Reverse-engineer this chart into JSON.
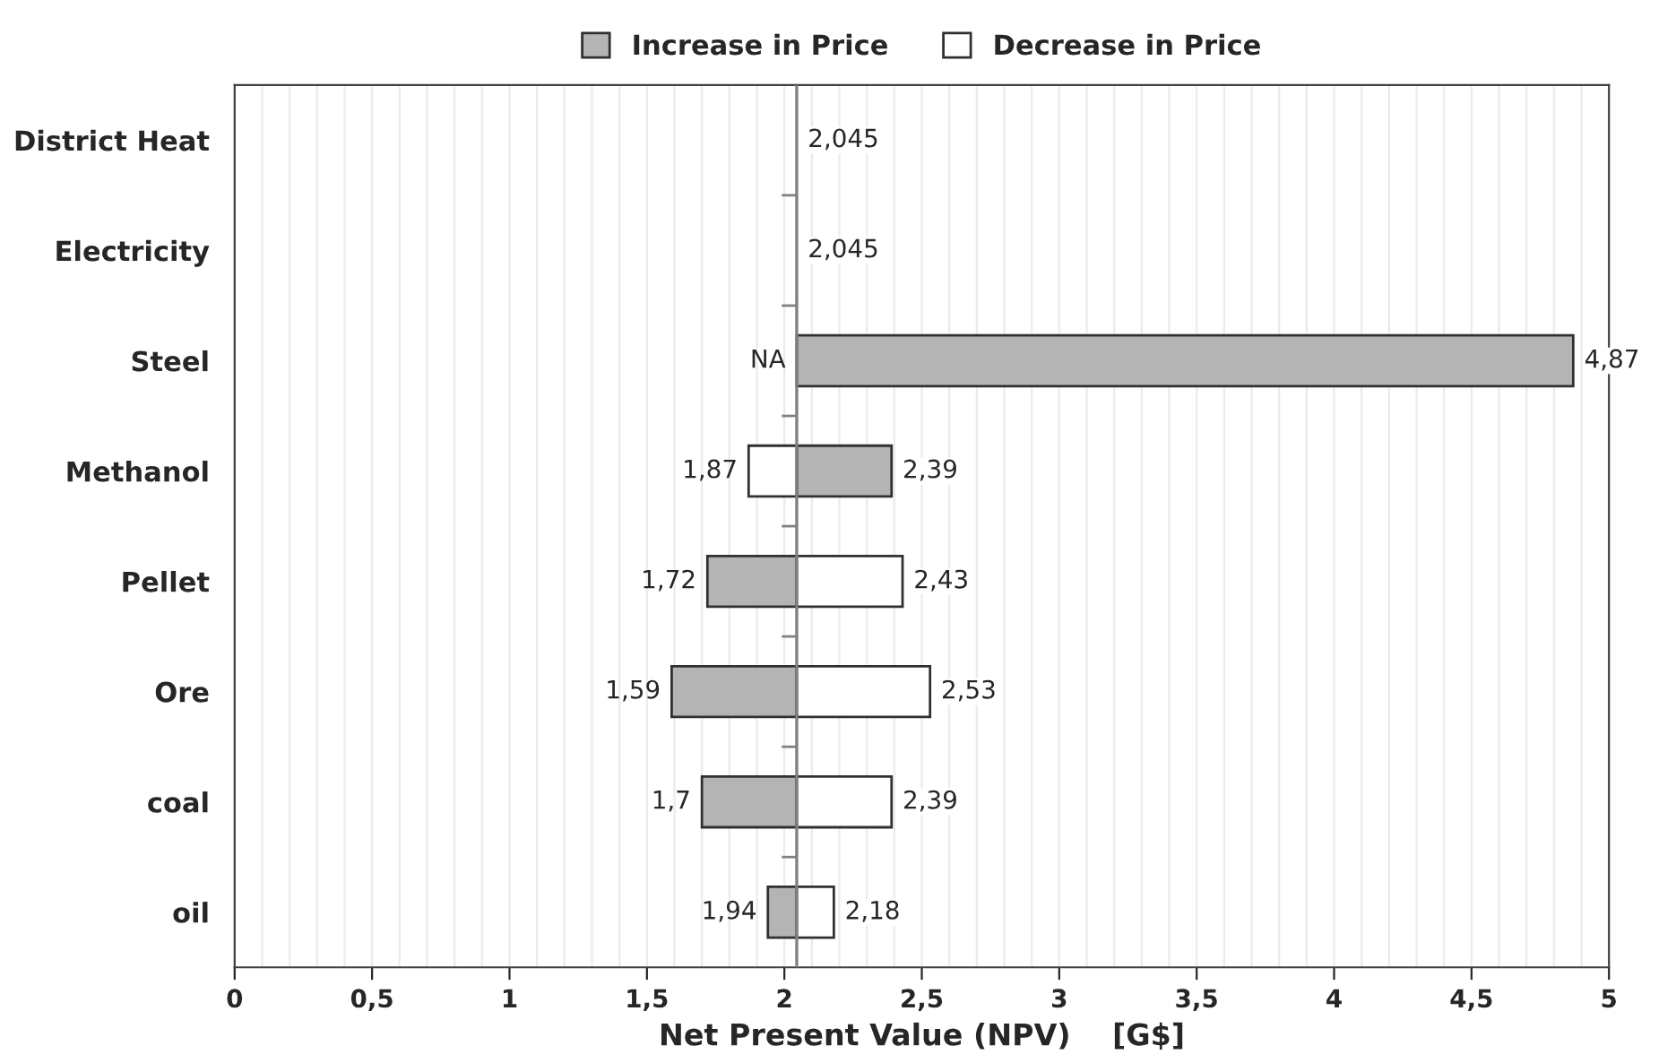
{
  "chart_data": {
    "type": "bar",
    "orientation": "horizontal",
    "xlabel": "Net Present Value (NPV)    [G$]",
    "categories": [
      "District Heat",
      "Electricity",
      "Steel",
      "Methanol",
      "Pellet",
      "Ore",
      "coal",
      "oil"
    ],
    "series": [
      {
        "name": "Increase in Price",
        "color": "#b4b4b4",
        "base": [
          null,
          null,
          2.045,
          2.045,
          2.045,
          2.045,
          2.045,
          2.045
        ],
        "values": [
          null,
          null,
          2.825,
          0.345,
          -0.325,
          -0.455,
          -0.345,
          -0.105
        ]
      },
      {
        "name": "Decrease in Price",
        "color": "#ffffff",
        "base": [
          null,
          null,
          null,
          2.045,
          2.045,
          2.045,
          2.045,
          2.045
        ],
        "values": [
          null,
          null,
          null,
          -0.175,
          0.385,
          0.485,
          0.345,
          0.135
        ]
      }
    ],
    "annotations": [
      {
        "text": "2,045",
        "x": 2.045,
        "y": "District Heat"
      },
      {
        "text": "2,045",
        "x": 2.045,
        "y": "Electricity"
      },
      {
        "text": "NA",
        "x": 2.045,
        "y": "Steel"
      },
      {
        "text": "4,87",
        "x": 4.87,
        "y": "Steel"
      },
      {
        "text": "1,87",
        "x": 1.87,
        "y": "Methanol"
      },
      {
        "text": "2,39",
        "x": 2.39,
        "y": "Methanol"
      },
      {
        "text": "1,72",
        "x": 1.72,
        "y": "Pellet"
      },
      {
        "text": "2,43",
        "x": 2.43,
        "y": "Pellet"
      },
      {
        "text": "1,59",
        "x": 1.59,
        "y": "Ore"
      },
      {
        "text": "2,53",
        "x": 2.53,
        "y": "Ore"
      },
      {
        "text": "1,7",
        "x": 1.7,
        "y": "coal"
      },
      {
        "text": "2,39",
        "x": 2.39,
        "y": "coal"
      },
      {
        "text": "1,94",
        "x": 1.94,
        "y": "oil"
      },
      {
        "text": "2,18",
        "x": 2.18,
        "y": "oil"
      }
    ],
    "xlim": [
      0,
      5
    ],
    "xticks": [
      0,
      {
        "value": 0.5,
        "label": "0,5"
      },
      1,
      {
        "value": 1.5,
        "label": "1,5"
      },
      2,
      {
        "value": 2.5,
        "label": "2,5"
      },
      3,
      {
        "value": 3.5,
        "label": "3,5"
      },
      4,
      {
        "value": 4.5,
        "label": "4,5"
      },
      5
    ],
    "ref_lines": [
      {
        "axis": "x",
        "value": 2.045,
        "color": "#808080"
      }
    ],
    "grid": "x",
    "legend": "top"
  }
}
